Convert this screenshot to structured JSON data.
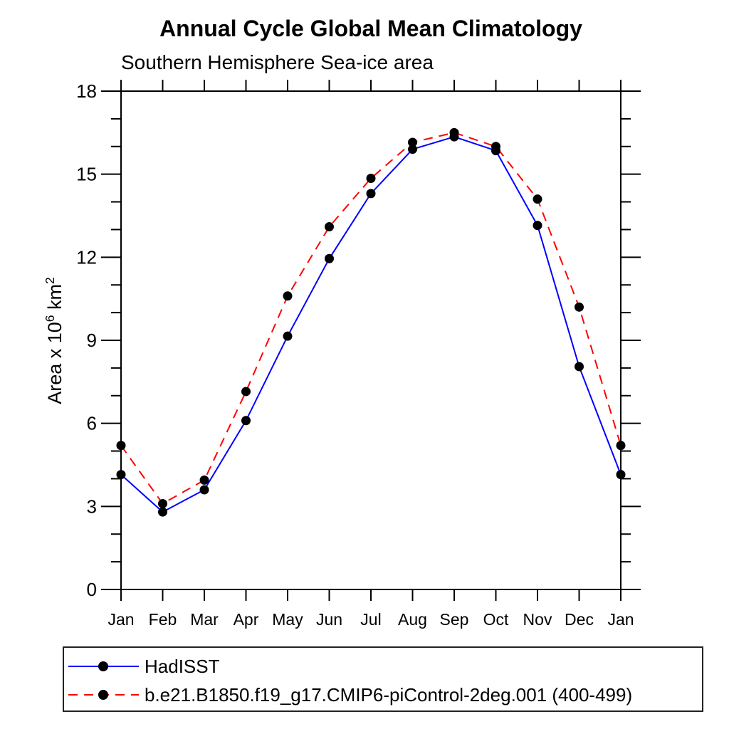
{
  "title": "Annual Cycle Global Mean Climatology",
  "subtitle": "Southern Hemisphere Sea-ice area",
  "chart_data": {
    "type": "line",
    "title": "Annual Cycle Global Mean Climatology",
    "subtitle": "Southern Hemisphere Sea-ice area",
    "ylabel": "Area x 10^6 km^2",
    "ylabel_parts": {
      "prefix": "Area x 10",
      "sup1": "6",
      "mid": " km",
      "sup2": "2"
    },
    "x_categories": [
      "Jan",
      "Feb",
      "Mar",
      "Apr",
      "May",
      "Jun",
      "Jul",
      "Aug",
      "Sep",
      "Oct",
      "Nov",
      "Dec",
      "Jan"
    ],
    "y_ticks": [
      "0",
      "3",
      "6",
      "9",
      "12",
      "15",
      "18"
    ],
    "ylim": [
      0,
      18
    ],
    "minor_tick_step": 1,
    "grid": false,
    "legend_position": "bottom-left-box",
    "axis_color": "#000000",
    "marker_color": "#000000",
    "series": [
      {
        "name": "HadISST",
        "color": "#0000ff",
        "style": "solid",
        "marker": "black-dot",
        "values": [
          4.15,
          2.8,
          3.6,
          6.1,
          9.15,
          11.95,
          14.3,
          15.9,
          16.35,
          15.85,
          13.15,
          8.05,
          4.15
        ]
      },
      {
        "name": "b.e21.B1850.f19_g17.CMIP6-piControl-2deg.001 (400-499)",
        "color": "#ff0000",
        "style": "dashed",
        "marker": "black-dot",
        "values": [
          5.2,
          3.1,
          3.95,
          7.15,
          10.6,
          13.1,
          14.85,
          16.15,
          16.5,
          16.0,
          14.1,
          10.2,
          5.2
        ]
      }
    ]
  }
}
